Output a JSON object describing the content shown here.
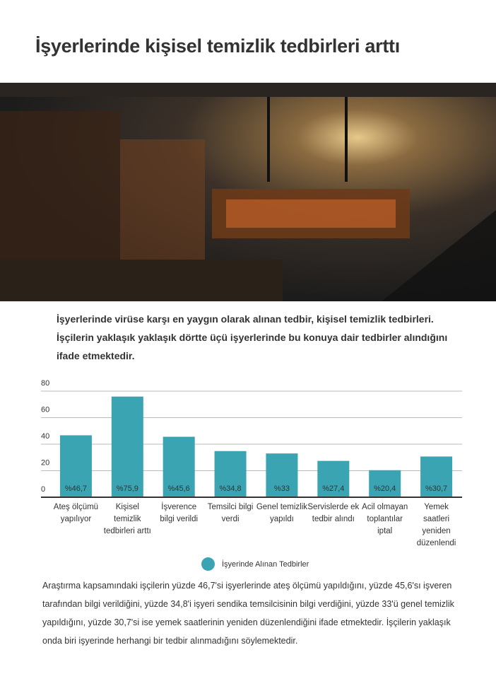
{
  "header": {
    "title": "İşyerlerinde kişisel temizlik tedbirleri arttı"
  },
  "intro": "İşyerlerinde virüse karşı en yaygın olarak alınan tedbir, kişisel temizlik tedbirleri. İşçilerin yaklaşık yaklaşık dörtte üçü işyerlerinde bu konuya dair tedbirler alındığını ifade etmektedir.",
  "chart_data": {
    "type": "bar",
    "categories": [
      "Ateş ölçümü yapılıyor",
      "Kişisel temizlik tedbirleri arttı",
      "İşverence bilgi verildi",
      "Temsilci bilgi verdi",
      "Genel temizlik yapıldı",
      "Servislerde ek tedbir alındı",
      "Acil olmayan toplantılar iptal",
      "Yemek saatleri yeniden düzenlendi"
    ],
    "series": [
      {
        "name": "İşyerinde Alınan Tedbirler",
        "color": "#3ba4b2",
        "values": [
          46.7,
          75.9,
          45.6,
          34.8,
          33,
          27.4,
          20.4,
          30.7
        ],
        "value_labels": [
          "%46,7",
          "%75,9",
          "%45,6",
          "%34,8",
          "%33",
          "%27,4",
          "%20,4",
          "%30,7"
        ]
      }
    ],
    "ylim": [
      0,
      80
    ],
    "yticks": [
      0,
      20,
      40,
      60,
      80
    ],
    "grid": true,
    "legend": "bottom"
  },
  "closing": "Araştırma kapsamındaki işçilerin yüzde 46,7'si işyerlerinde ateş ölçümü yapıldığını, yüzde 45,6'sı işveren tarafından bilgi verildiğini, yüzde 34,8'i işyeri sendika temsilcisinin bilgi verdiğini, yüzde 33'ü genel temizlik yapıldığını, yüzde 30,7'si ise yemek saatlerinin yeniden düzenlendiğini ifade etmektedir.  İşçilerin yaklaşık onda biri işyerinde herhangi bir tedbir alınmadığını söylemektedir."
}
